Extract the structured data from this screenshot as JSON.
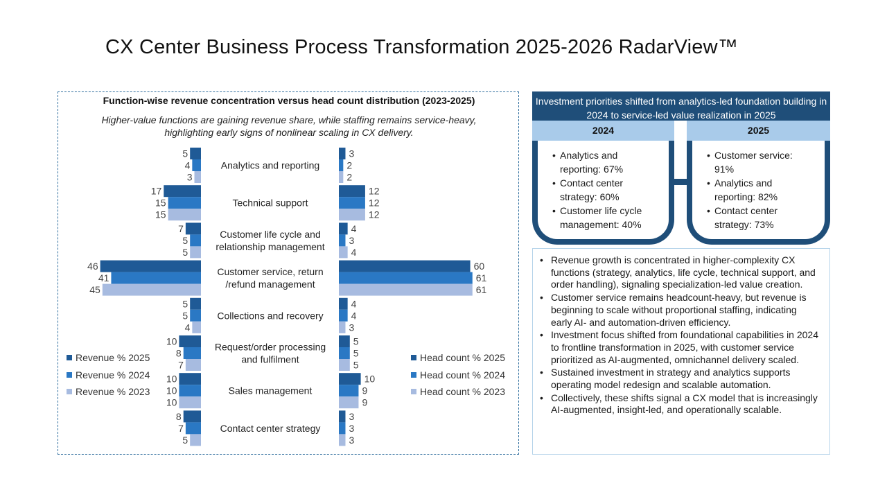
{
  "page": {
    "title": "CX Center Business Process Transformation 2025-2026 RadarView™"
  },
  "chart_data": {
    "type": "bar",
    "orientation": "horizontal-butterfly",
    "title": "Function-wise revenue concentration versus head count distribution (2023-2025)",
    "subtitle": "Higher-value functions are gaining revenue share, while staffing remains service-heavy, highlighting early signs of nonlinear scaling in CX delivery.",
    "categories": [
      [
        "Analytics and reporting"
      ],
      [
        "Technical support"
      ],
      [
        "Customer life cycle and",
        "relationship management"
      ],
      [
        "Customer service, return",
        "/refund management"
      ],
      [
        "Collections and recovery"
      ],
      [
        "Request/order processing",
        "and fulfilment"
      ],
      [
        "Sales management"
      ],
      [
        "Contact center strategy"
      ]
    ],
    "revenue_series": [
      {
        "name": "Revenue % 2025",
        "color": "#1f5a96",
        "values": [
          5,
          17,
          7,
          46,
          5,
          10,
          10,
          8
        ]
      },
      {
        "name": "Revenue % 2024",
        "color": "#2a78c4",
        "values": [
          4,
          15,
          5,
          41,
          5,
          8,
          10,
          7
        ]
      },
      {
        "name": "Revenue % 2023",
        "color": "#a7bbe0",
        "values": [
          3,
          15,
          5,
          45,
          4,
          7,
          10,
          5
        ]
      }
    ],
    "headcount_series": [
      {
        "name": "Head count % 2025",
        "color": "#1f5a96",
        "values": [
          3,
          12,
          4,
          60,
          4,
          5,
          10,
          3
        ]
      },
      {
        "name": "Head count % 2024",
        "color": "#2a78c4",
        "values": [
          2,
          12,
          3,
          61,
          4,
          5,
          9,
          3
        ]
      },
      {
        "name": "Head count % 2023",
        "color": "#a7bbe0",
        "values": [
          2,
          12,
          4,
          61,
          3,
          5,
          9,
          3
        ]
      }
    ],
    "value_max": 61
  },
  "investment": {
    "header": "Investment priorities shifted from analytics-led foundation building in 2024 to service-led value realization in 2025",
    "year_2024": {
      "label": "2024",
      "items": [
        "Analytics and reporting: 67%",
        "Contact center strategy: 60%",
        "Customer life cycle management:  40%"
      ]
    },
    "year_2025": {
      "label": "2025",
      "items": [
        "Customer service: 91%",
        "Analytics and reporting: 82%",
        " Contact center strategy: 73%"
      ]
    }
  },
  "insights": [
    "Revenue growth is concentrated in higher-complexity CX functions (strategy, analytics, life cycle, technical support, and order handling), signaling specialization-led value creation.",
    "Customer service remains headcount-heavy, but revenue is beginning to scale without proportional staffing, indicating early AI- and automation-driven efficiency.",
    "Investment focus shifted from foundational capabilities in 2024 to frontline transformation in 2025, with customer service prioritized as AI-augmented, omnichannel delivery scaled.",
    "Sustained investment in strategy and analytics supports operating model redesign and scalable automation.",
    "Collectively, these shifts signal a CX model that is increasingly AI-augmented, insight-led, and operationally scalable."
  ]
}
